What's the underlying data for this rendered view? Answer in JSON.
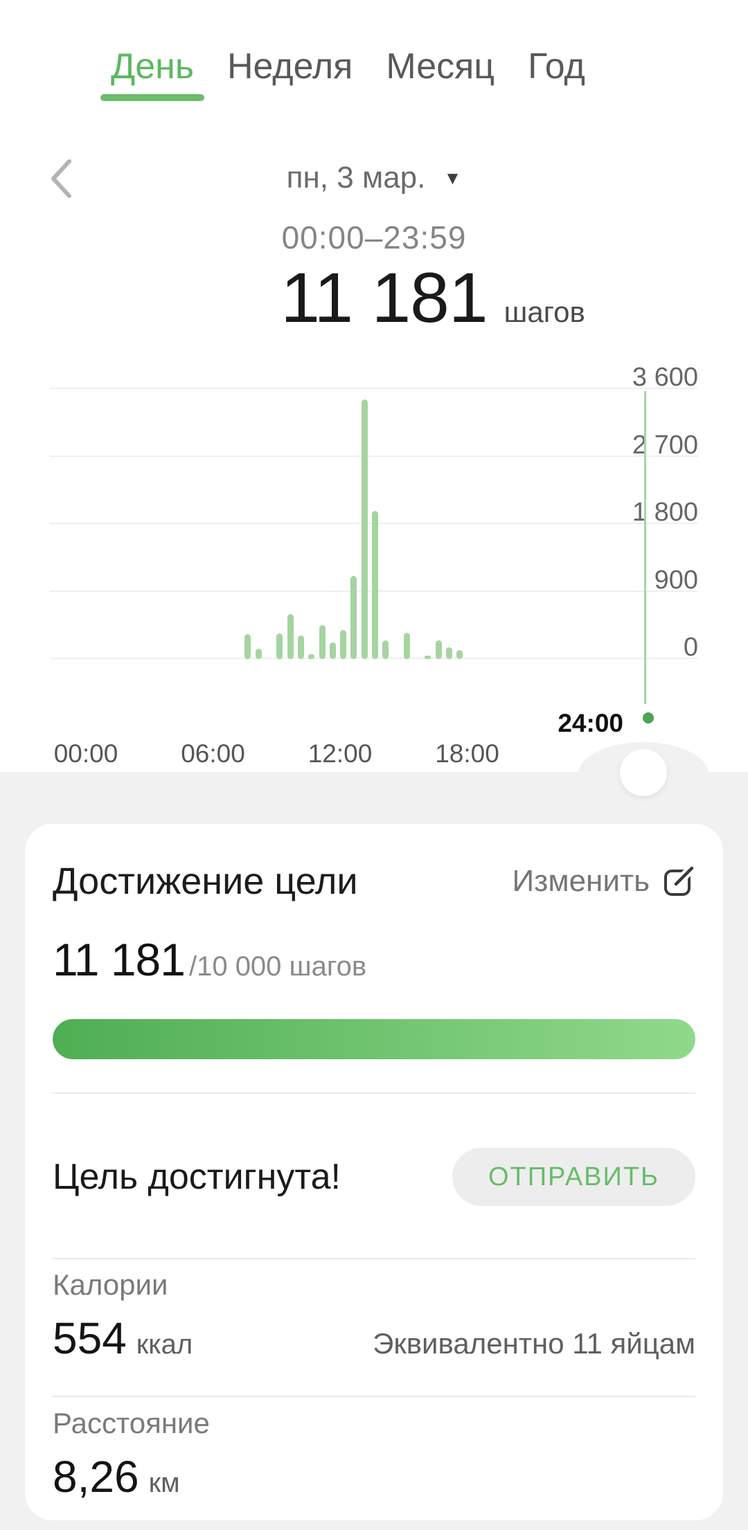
{
  "tabs": {
    "items": [
      {
        "label": "День",
        "active": true
      },
      {
        "label": "Неделя",
        "active": false
      },
      {
        "label": "Месяц",
        "active": false
      },
      {
        "label": "Год",
        "active": false
      }
    ]
  },
  "date_nav": {
    "date_label": "пн, 3 мар.",
    "dropdown_icon": "triangle-down",
    "prev_icon": "chevron-left"
  },
  "summary": {
    "time_range": "00:00–23:59",
    "steps_value": "11 181",
    "steps_unit": "шагов"
  },
  "chart_data": {
    "type": "bar",
    "ylim": [
      0,
      3600
    ],
    "y_ticks": [
      {
        "value": 0,
        "label": "0"
      },
      {
        "value": 900,
        "label": "900"
      },
      {
        "value": 1800,
        "label": "1 800"
      },
      {
        "value": 2700,
        "label": "2 700"
      },
      {
        "value": 3600,
        "label": "3 600"
      }
    ],
    "x_ticks": [
      {
        "hour": 0,
        "label": "00:00"
      },
      {
        "hour": 6,
        "label": "06:00"
      },
      {
        "hour": 12,
        "label": "12:00"
      },
      {
        "hour": 18,
        "label": "18:00"
      }
    ],
    "cursor": {
      "hour": 24,
      "label": "24:00"
    },
    "grid": true,
    "legend": false,
    "bars": [
      {
        "hour": 7.65,
        "value": 330
      },
      {
        "hour": 8.15,
        "value": 140
      },
      {
        "hour": 9.15,
        "value": 345
      },
      {
        "hour": 9.65,
        "value": 600
      },
      {
        "hour": 10.15,
        "value": 315
      },
      {
        "hour": 10.65,
        "value": 65
      },
      {
        "hour": 11.15,
        "value": 455
      },
      {
        "hour": 11.65,
        "value": 225
      },
      {
        "hour": 12.15,
        "value": 390
      },
      {
        "hour": 12.65,
        "value": 1110
      },
      {
        "hour": 13.15,
        "value": 3460
      },
      {
        "hour": 13.65,
        "value": 1980
      },
      {
        "hour": 14.15,
        "value": 250
      },
      {
        "hour": 15.15,
        "value": 355
      },
      {
        "hour": 16.15,
        "value": 30
      },
      {
        "hour": 16.65,
        "value": 250
      },
      {
        "hour": 17.15,
        "value": 160
      },
      {
        "hour": 17.65,
        "value": 120
      }
    ]
  },
  "goal_card": {
    "title": "Достижение цели",
    "edit_label": "Изменить",
    "edit_icon": "edit-square-icon",
    "current_steps": "11 181",
    "goal_suffix": "/10 000 шагов",
    "progress_percent": 100,
    "goal_status": "Цель достигнута!",
    "send_label": "ОТПРАВИТЬ",
    "calories": {
      "label": "Калории",
      "value": "554",
      "unit": "ккал",
      "equivalent": "Эквивалентно 11 яйцам"
    },
    "distance": {
      "label": "Расстояние",
      "value": "8,26",
      "unit": "км"
    }
  },
  "colors": {
    "accent_green": "#5cb75e",
    "bar_green": "#a5d4a0",
    "dot_green": "#4ca552",
    "progress_from": "#4fae53",
    "progress_to": "#90d98c",
    "send_text": "#68bc6a",
    "page_gray": "#f1f1f2"
  }
}
